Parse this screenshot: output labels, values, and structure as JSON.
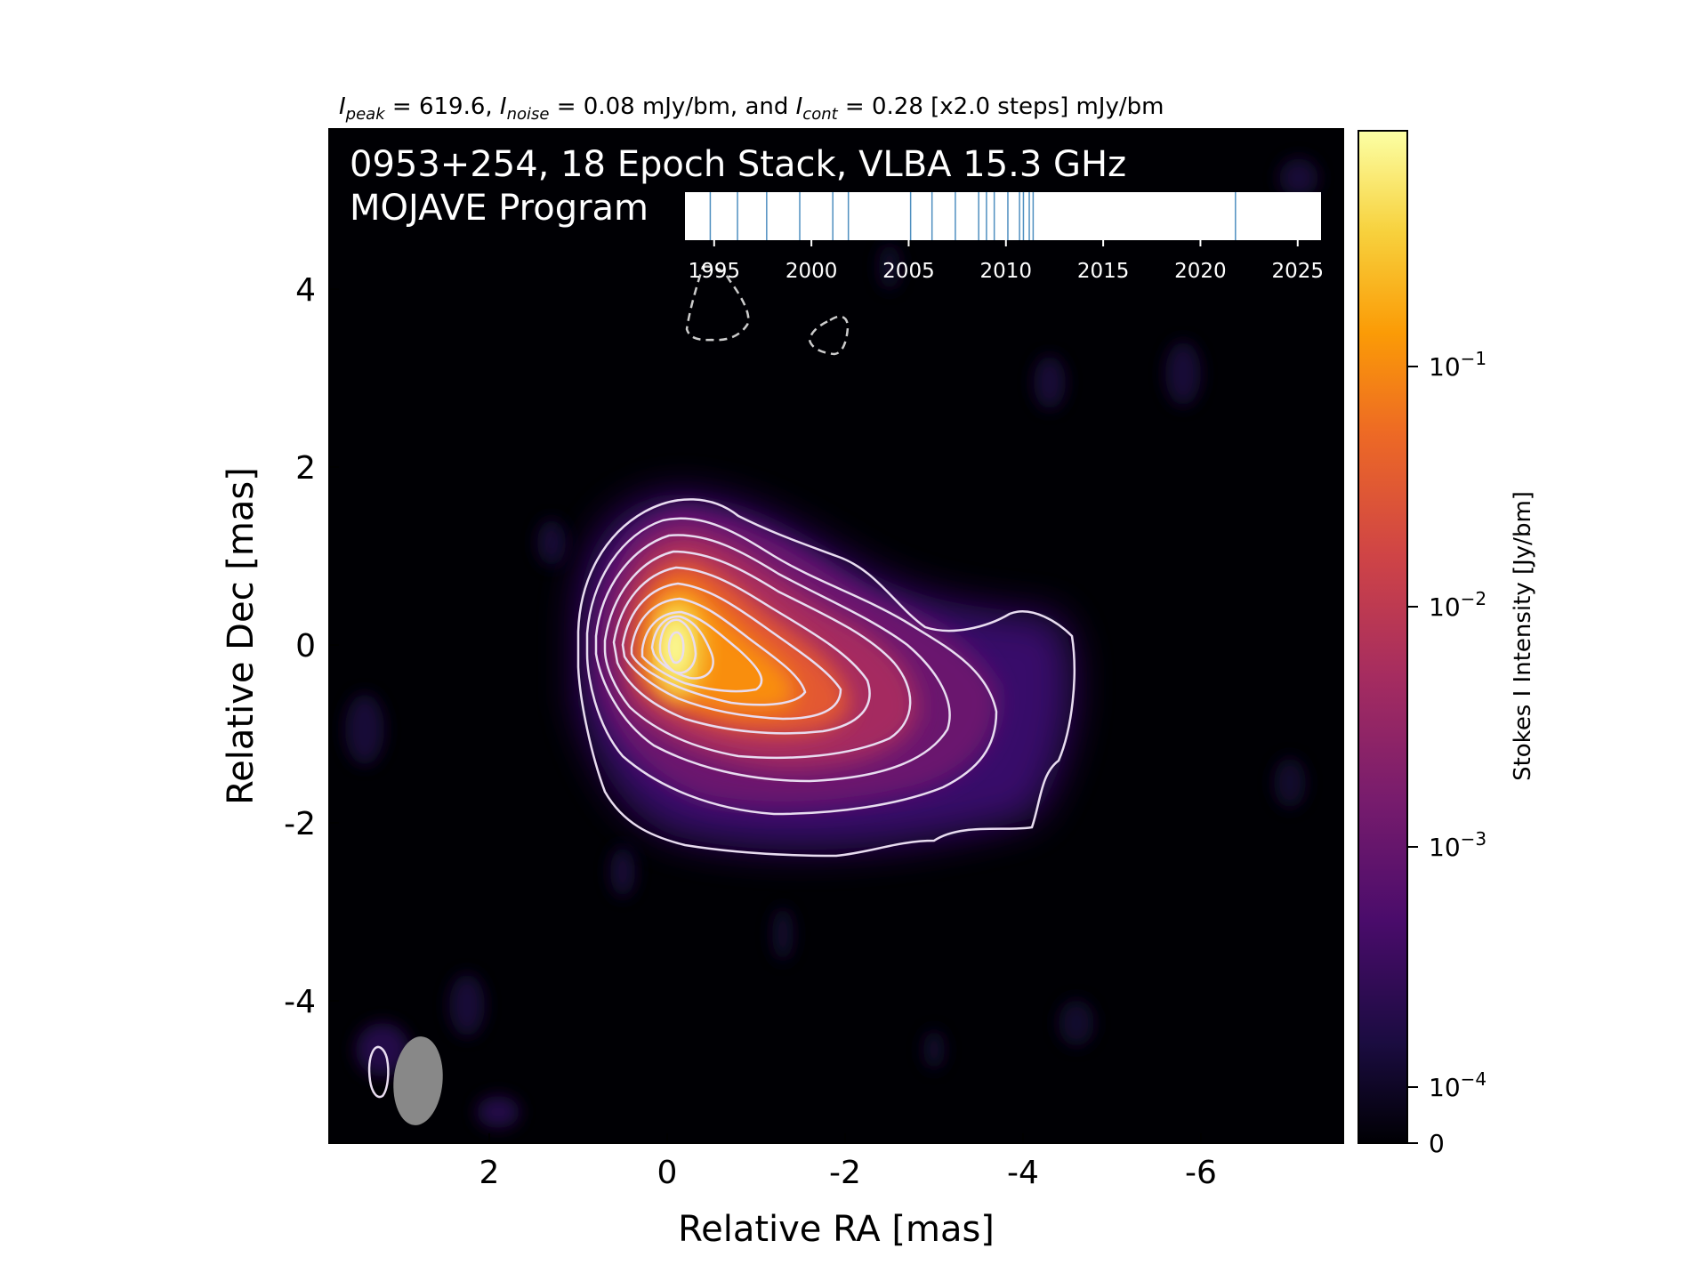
{
  "chart_data": {
    "type": "heatmap",
    "header": {
      "peak_sym": "I",
      "peak_sub": "peak",
      "peak_text": " = 619.6, ",
      "noise_sym": "I",
      "noise_sub": "noise",
      "noise_text": " = 0.08 mJy/bm, and ",
      "cont_sym": "I",
      "cont_sub": "cont",
      "cont_text": " = 0.28 [x2.0 steps] mJy/bm"
    },
    "title_line1": "0953+254, 18 Epoch Stack, VLBA 15.3 GHz",
    "title_line2": "MOJAVE Program",
    "xlabel": "Relative RA [mas]",
    "ylabel": "Relative Dec [mas]",
    "xlim": [
      3.8,
      -7.6
    ],
    "ylim": [
      -5.6,
      5.8
    ],
    "xticks": [
      2,
      0,
      -2,
      -4,
      -6
    ],
    "xtick_labels": [
      "2",
      "0",
      "-2",
      "-4",
      "-6"
    ],
    "yticks": [
      4,
      2,
      0,
      -2,
      -4
    ],
    "ytick_labels": [
      "4",
      "2",
      "0",
      "-2",
      "-4"
    ],
    "colorbar": {
      "label": "Stokes I Intensity [Jy/bm]",
      "ticks": [
        {
          "base": "10",
          "exp": "−1",
          "value": 0.1
        },
        {
          "base": "10",
          "exp": "−2",
          "value": 0.01
        },
        {
          "base": "10",
          "exp": "−3",
          "value": 0.001
        },
        {
          "base": "10",
          "exp": "−4",
          "value": 0.0001
        },
        {
          "base": "0",
          "exp": "",
          "value": 0
        }
      ]
    },
    "beam": {
      "ra": 2.8,
      "dec": -4.9,
      "major_mas": 1.0,
      "minor_mas": 0.55,
      "pa_deg": -5
    },
    "epoch_timeline": {
      "xlim": [
        1993.5,
        2026.2
      ],
      "ticks": [
        1995,
        2000,
        2005,
        2010,
        2015,
        2020,
        2025
      ],
      "tick_labels": [
        "1995",
        "2000",
        "2005",
        "2010",
        "2015",
        "2020",
        "2025"
      ],
      "epochs": [
        1994.8,
        1996.2,
        1997.7,
        1999.4,
        2001.1,
        2001.9,
        2005.1,
        2006.2,
        2007.4,
        2008.6,
        2009.0,
        2009.4,
        2010.1,
        2010.7,
        2010.9,
        2011.2,
        2011.4,
        2021.8
      ]
    },
    "colors": {
      "background": "#000004",
      "contour": "#e8dcf0",
      "beam": "#888888",
      "epoch_line": "#4f8fc0"
    }
  }
}
